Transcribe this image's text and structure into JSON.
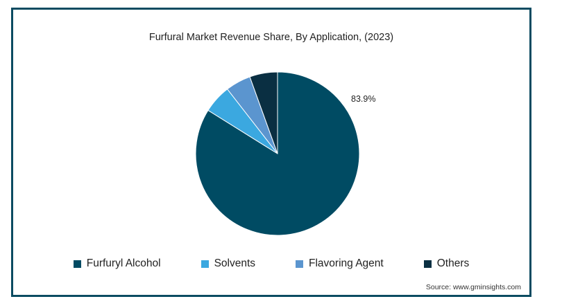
{
  "chart_data": {
    "type": "pie",
    "title": "Furfural Market Revenue Share, By Application, (2023)",
    "categories": [
      "Furfuryl Alcohol",
      "Solvents",
      "Flavoring Agent",
      "Others"
    ],
    "values": [
      83.9,
      5.6,
      5.0,
      5.5
    ],
    "colors": [
      "#004b63",
      "#3ba8e0",
      "#5b95cf",
      "#0a2f42"
    ],
    "data_labels": [
      {
        "category": "Furfuryl Alcohol",
        "text": "83.9%"
      }
    ],
    "legend_position": "bottom"
  },
  "source": "Source: www.gminsights.com"
}
